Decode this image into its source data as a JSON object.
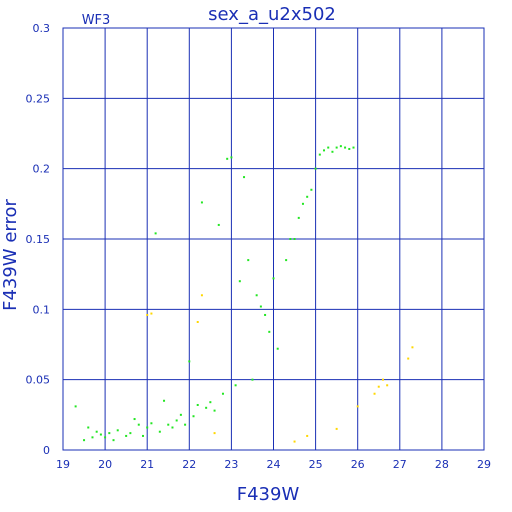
{
  "chart_data": {
    "type": "scatter",
    "title": "sex_a_u2x502",
    "panel_label": "WF3",
    "xlabel": "F439W",
    "ylabel": "F439W error",
    "xlim": [
      19,
      29
    ],
    "ylim": [
      0,
      0.3
    ],
    "xticks": [
      "19",
      "20",
      "21",
      "22",
      "23",
      "24",
      "25",
      "26",
      "27",
      "28",
      "29"
    ],
    "yticks": [
      "0",
      "0.05",
      "0.1",
      "0.15",
      "0.2",
      "0.25",
      "0.3"
    ],
    "grid": true,
    "series": [
      {
        "color": "#22e622",
        "points": [
          [
            19.3,
            0.031
          ],
          [
            19.5,
            0.007
          ],
          [
            19.6,
            0.016
          ],
          [
            19.7,
            0.009
          ],
          [
            19.8,
            0.013
          ],
          [
            19.9,
            0.011
          ],
          [
            20.0,
            0.009
          ],
          [
            20.1,
            0.012
          ],
          [
            20.2,
            0.007
          ],
          [
            20.3,
            0.014
          ],
          [
            20.5,
            0.01
          ],
          [
            20.6,
            0.012
          ],
          [
            20.7,
            0.022
          ],
          [
            20.8,
            0.018
          ],
          [
            20.9,
            0.01
          ],
          [
            21.0,
            0.016
          ],
          [
            21.1,
            0.019
          ],
          [
            21.2,
            0.154
          ],
          [
            21.3,
            0.013
          ],
          [
            21.4,
            0.035
          ],
          [
            21.5,
            0.018
          ],
          [
            21.6,
            0.016
          ],
          [
            21.7,
            0.021
          ],
          [
            21.8,
            0.025
          ],
          [
            21.9,
            0.018
          ],
          [
            22.0,
            0.063
          ],
          [
            22.1,
            0.024
          ],
          [
            22.2,
            0.032
          ],
          [
            22.3,
            0.176
          ],
          [
            22.4,
            0.03
          ],
          [
            22.5,
            0.034
          ],
          [
            22.6,
            0.028
          ],
          [
            22.7,
            0.16
          ],
          [
            22.8,
            0.04
          ],
          [
            22.9,
            0.207
          ],
          [
            23.0,
            0.208
          ],
          [
            23.1,
            0.046
          ],
          [
            23.2,
            0.12
          ],
          [
            23.3,
            0.194
          ],
          [
            23.4,
            0.135
          ],
          [
            23.5,
            0.05
          ],
          [
            23.6,
            0.11
          ],
          [
            23.7,
            0.102
          ],
          [
            23.8,
            0.096
          ],
          [
            23.9,
            0.084
          ],
          [
            24.0,
            0.122
          ],
          [
            24.1,
            0.072
          ],
          [
            24.3,
            0.135
          ],
          [
            24.4,
            0.15
          ],
          [
            24.5,
            0.15
          ],
          [
            24.6,
            0.165
          ],
          [
            24.7,
            0.175
          ],
          [
            24.8,
            0.18
          ],
          [
            24.9,
            0.185
          ],
          [
            25.0,
            0.2
          ],
          [
            25.1,
            0.21
          ],
          [
            25.2,
            0.213
          ],
          [
            25.3,
            0.215
          ],
          [
            25.4,
            0.212
          ],
          [
            25.5,
            0.215
          ],
          [
            25.6,
            0.216
          ],
          [
            25.7,
            0.215
          ],
          [
            25.8,
            0.214
          ],
          [
            25.9,
            0.215
          ]
        ]
      },
      {
        "color": "#ffd700",
        "points": [
          [
            21.0,
            0.096
          ],
          [
            21.1,
            0.097
          ],
          [
            22.2,
            0.091
          ],
          [
            22.3,
            0.11
          ],
          [
            22.6,
            0.012
          ],
          [
            24.5,
            0.006
          ],
          [
            24.8,
            0.01
          ],
          [
            25.5,
            0.015
          ],
          [
            26.0,
            0.031
          ],
          [
            26.4,
            0.04
          ],
          [
            26.5,
            0.045
          ],
          [
            26.6,
            0.05
          ],
          [
            26.7,
            0.046
          ],
          [
            27.2,
            0.065
          ],
          [
            27.3,
            0.073
          ]
        ]
      }
    ]
  }
}
